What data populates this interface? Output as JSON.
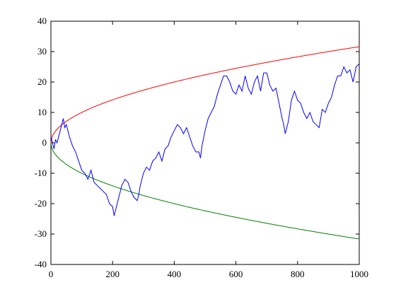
{
  "chart_data": {
    "type": "line",
    "title": "",
    "xlabel": "",
    "ylabel": "",
    "xlim": [
      0,
      1000
    ],
    "ylim": [
      -40,
      40
    ],
    "xticks": [
      "0",
      "200",
      "400",
      "600",
      "800",
      "1000"
    ],
    "yticks": [
      "40",
      "30",
      "20",
      "10",
      "0",
      "-10",
      "-20",
      "-30",
      "-40"
    ],
    "grid": false,
    "legend": "none",
    "series": [
      {
        "color": "#ff0000",
        "formula": "y = sqrt(x)",
        "x": [
          0,
          10,
          25,
          50,
          100,
          200,
          300,
          400,
          500,
          600,
          700,
          800,
          900,
          1000
        ],
        "values": [
          0,
          3.16,
          5,
          7.07,
          10,
          14.14,
          17.32,
          20,
          22.36,
          24.49,
          26.46,
          28.28,
          30,
          31.62
        ]
      },
      {
        "color": "#008000",
        "formula": "y = -sqrt(x)",
        "x": [
          0,
          10,
          25,
          50,
          100,
          200,
          300,
          400,
          500,
          600,
          700,
          800,
          900,
          1000
        ],
        "values": [
          0,
          -3.16,
          -5,
          -7.07,
          -10,
          -14.14,
          -17.32,
          -20,
          -22.36,
          -24.49,
          -26.46,
          -28.28,
          -30,
          -31.62
        ]
      },
      {
        "color": "#0000ff",
        "x": [
          0,
          5,
          10,
          15,
          20,
          25,
          30,
          35,
          40,
          45,
          50,
          60,
          70,
          80,
          90,
          100,
          110,
          120,
          130,
          140,
          150,
          160,
          170,
          180,
          190,
          200,
          205,
          210,
          215,
          220,
          225,
          230,
          240,
          250,
          260,
          270,
          280,
          285,
          290,
          300,
          310,
          320,
          330,
          340,
          350,
          360,
          370,
          380,
          390,
          400,
          410,
          420,
          430,
          440,
          450,
          460,
          470,
          480,
          485,
          490,
          500,
          510,
          520,
          530,
          540,
          550,
          560,
          570,
          580,
          590,
          600,
          610,
          620,
          630,
          640,
          650,
          660,
          670,
          680,
          690,
          700,
          710,
          720,
          730,
          740,
          750,
          755,
          760,
          770,
          780,
          790,
          800,
          810,
          820,
          830,
          840,
          850,
          860,
          870,
          880,
          890,
          900,
          910,
          920,
          930,
          940,
          950,
          960,
          970,
          980,
          990,
          1000
        ],
        "values": [
          2,
          0,
          -2,
          1,
          0,
          2,
          4,
          6,
          8,
          5,
          6,
          2,
          -1,
          -3,
          -6,
          -9,
          -10,
          -12,
          -9,
          -13,
          -14,
          -15,
          -16,
          -17,
          -20,
          -21,
          -24,
          -22,
          -20,
          -18,
          -16,
          -14,
          -12,
          -13,
          -16,
          -18,
          -19,
          -17,
          -14,
          -10,
          -8,
          -9,
          -6,
          -5,
          -3,
          -6,
          -2,
          -1,
          2,
          4,
          6,
          5,
          3,
          5,
          2,
          -1,
          -3,
          -3,
          -5,
          -1,
          4,
          8,
          10,
          12,
          16,
          19,
          22,
          22,
          20,
          17,
          16,
          19,
          17,
          22,
          18,
          16,
          20,
          22,
          17,
          23,
          23,
          19,
          17,
          18,
          13,
          8,
          6,
          3,
          7,
          14,
          17,
          14,
          13,
          10,
          8,
          10,
          7,
          6,
          5,
          11,
          10,
          13,
          15,
          19,
          22,
          22,
          25,
          23,
          24,
          20,
          25,
          26
        ]
      }
    ]
  }
}
